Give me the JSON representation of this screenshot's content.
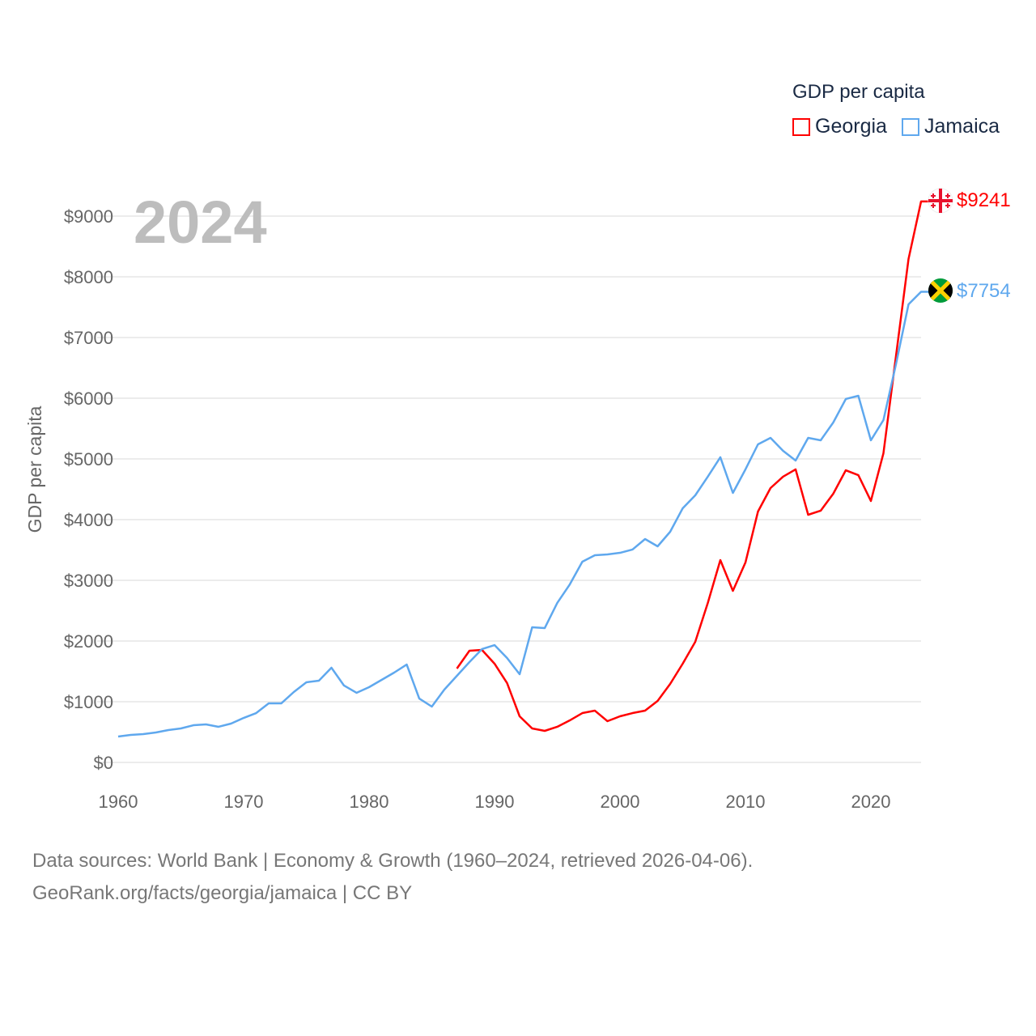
{
  "chart_data": {
    "type": "line",
    "title": "GDP per capita",
    "year_label": "2024",
    "xlabel": "",
    "ylabel": "GDP per capita",
    "xlim": [
      1960,
      2024
    ],
    "ylim": [
      0,
      9000
    ],
    "x_ticks": [
      "1960",
      "1970",
      "1980",
      "1990",
      "2000",
      "2010",
      "2020"
    ],
    "y_ticks": [
      "$0",
      "$1000",
      "$2000",
      "$3000",
      "$4000",
      "$5000",
      "$6000",
      "$7000",
      "$8000",
      "$9000"
    ],
    "grid": true,
    "legend_position": "top-right",
    "series": [
      {
        "name": "Georgia",
        "color": "#ff0000",
        "end_label": "$9241",
        "start_year": 1987,
        "values": [
          1547,
          1840,
          1853,
          1627,
          1307,
          760,
          560,
          520,
          587,
          693,
          813,
          853,
          680,
          760,
          813,
          853,
          1013,
          1293,
          1627,
          1987,
          2627,
          3333,
          2827,
          3293,
          4133,
          4520,
          4707,
          4827,
          4080,
          4147,
          4427,
          4813,
          4733,
          4307,
          5093,
          6693,
          8293,
          9241
        ]
      },
      {
        "name": "Jamaica",
        "color": "#5fa8ee",
        "end_label": "$7754",
        "start_year": 1960,
        "values": [
          427,
          453,
          467,
          493,
          533,
          560,
          613,
          627,
          587,
          640,
          733,
          813,
          973,
          973,
          1160,
          1320,
          1347,
          1560,
          1267,
          1147,
          1240,
          1360,
          1480,
          1613,
          1053,
          920,
          1200,
          1427,
          1653,
          1867,
          1933,
          1720,
          1453,
          2227,
          2213,
          2627,
          2933,
          3307,
          3413,
          3427,
          3453,
          3507,
          3680,
          3560,
          3800,
          4187,
          4400,
          4707,
          5027,
          4440,
          4827,
          5240,
          5347,
          5133,
          4973,
          5347,
          5307,
          5600,
          5987,
          6040,
          5307,
          5640,
          6560,
          7547,
          7754
        ]
      }
    ]
  },
  "footer": {
    "line1": "Data sources: World Bank | Economy & Growth (1960–2024, retrieved 2026-04-06).",
    "line2": "GeoRank.org/facts/georgia/jamaica | CC BY"
  }
}
